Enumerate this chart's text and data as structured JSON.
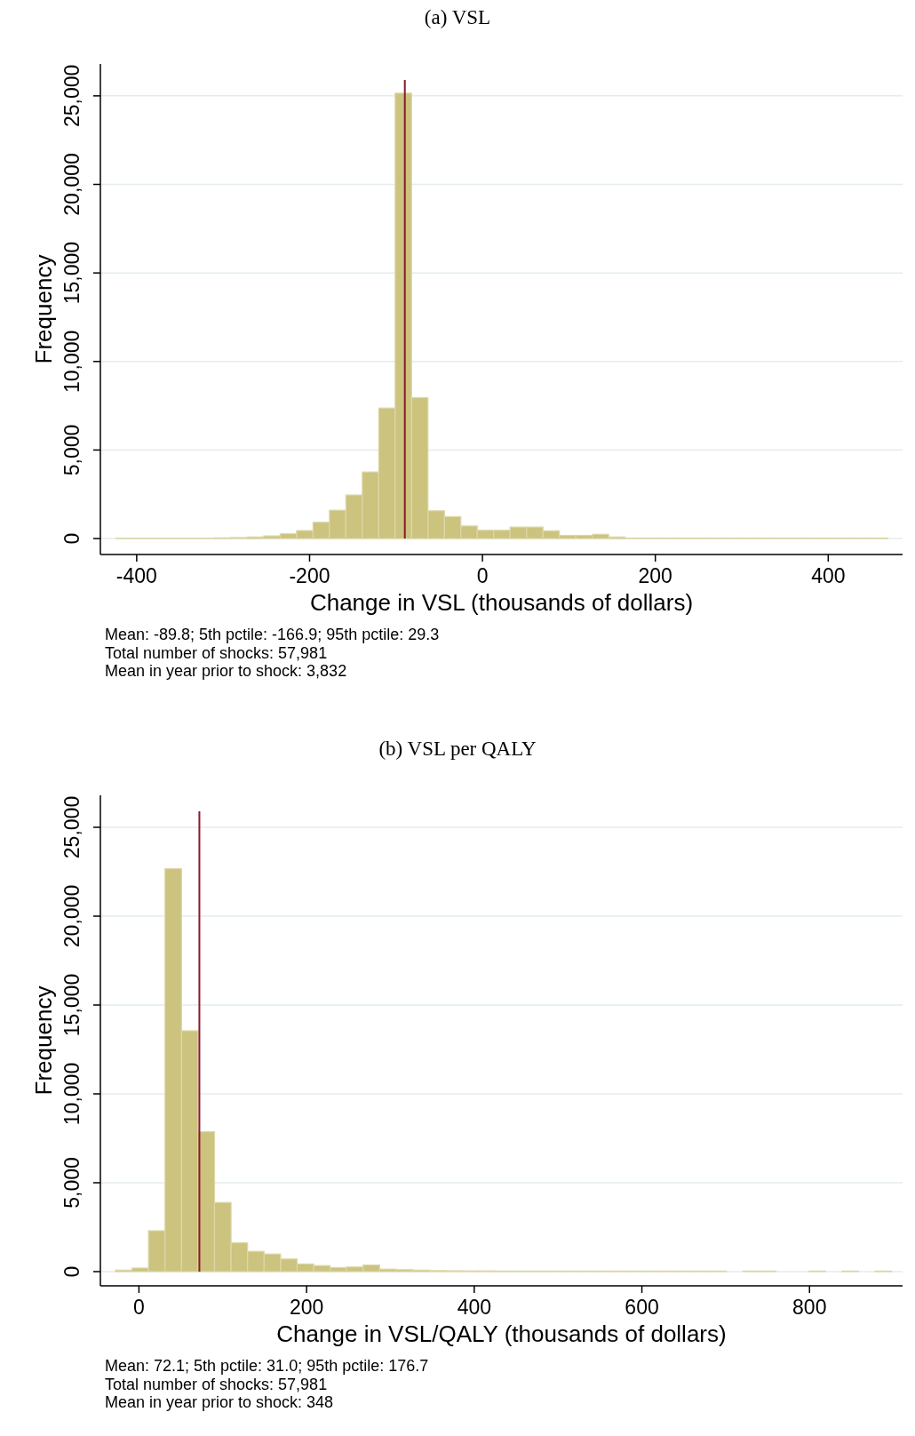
{
  "chart_data": [
    {
      "type": "histogram",
      "title": "(a) VSL",
      "xlabel": "Change in VSL (thousands of dollars)",
      "ylabel": "Frequency",
      "bins": [
        -424,
        -405,
        -386,
        -367,
        -348,
        -329,
        -310,
        -291,
        -272,
        -253,
        -234,
        -215,
        -196,
        -177,
        -158,
        -139,
        -120,
        -101,
        -82,
        -63,
        -44,
        -25,
        -6,
        13,
        32,
        51,
        70,
        89,
        108,
        127,
        146,
        165,
        184,
        203,
        222,
        241,
        260,
        279,
        298,
        317,
        336,
        355,
        374,
        393,
        412,
        431,
        450,
        469
      ],
      "values": [
        20,
        20,
        20,
        20,
        20,
        20,
        40,
        60,
        90,
        150,
        270,
        450,
        920,
        1600,
        2460,
        3760,
        7370,
        25150,
        7960,
        1570,
        1240,
        710,
        470,
        470,
        650,
        650,
        440,
        180,
        180,
        240,
        90,
        30,
        30,
        30,
        30,
        30,
        30,
        30,
        30,
        30,
        30,
        30,
        30,
        30,
        30,
        30,
        30
      ],
      "color": "#cbc37e",
      "xlim": [
        -442,
        486
      ],
      "xticks": [
        -400,
        -200,
        0,
        200,
        400
      ],
      "ylim": [
        -900,
        26800
      ],
      "yticks": [
        {
          "value": 0,
          "label": "0"
        },
        {
          "value": 5000,
          "label": "5,000"
        },
        {
          "value": 10000,
          "label": "10,000"
        },
        {
          "value": 15000,
          "label": "15,000"
        },
        {
          "value": 20000,
          "label": "20,000"
        },
        {
          "value": 25000,
          "label": "25,000"
        }
      ],
      "grid": "y",
      "ref_lines": [
        {
          "axis": "x",
          "value": -89.8,
          "color": "#8b1a2a"
        }
      ],
      "annotations": [
        "Mean: -89.8; 5th pctile: -166.9; 95th pctile: 29.3",
        "Total number of shocks:  57,981",
        "Mean in year prior to shock: 3,832"
      ]
    },
    {
      "type": "histogram",
      "title": "(b) VSL per QALY",
      "xlabel": "Change in VSL/QALY (thousands of dollars)",
      "ylabel": "Frequency",
      "bins": [
        -28,
        -8.3,
        11.4,
        31.1,
        50.8,
        70.5,
        90.2,
        109.9,
        129.6,
        149.3,
        169,
        188.7,
        208.4,
        228.1,
        247.8,
        267.5,
        287.2,
        306.9,
        326.6,
        346.3,
        366,
        385.7,
        405.4,
        425.1,
        444.8,
        464.5,
        484.2,
        503.9,
        523.6,
        543.3,
        563,
        582.7,
        602.4,
        622.1,
        641.8,
        661.5,
        681.2,
        700.9,
        720.6,
        740.3,
        760,
        779.7,
        799.4,
        819.1,
        838.8,
        858.5,
        878.2,
        897.9
      ],
      "values": [
        85,
        200,
        2300,
        22670,
        13550,
        7870,
        3890,
        1620,
        1140,
        990,
        710,
        430,
        340,
        230,
        260,
        370,
        140,
        110,
        85,
        60,
        50,
        40,
        40,
        30,
        30,
        30,
        30,
        30,
        30,
        30,
        30,
        30,
        30,
        30,
        30,
        30,
        30,
        0,
        30,
        30,
        0,
        0,
        30,
        0,
        30,
        0,
        30
      ],
      "color": "#cbc37e",
      "xlim": [
        -46,
        911
      ],
      "xticks": [
        0,
        200,
        400,
        600,
        800
      ],
      "ylim": [
        -800,
        26800
      ],
      "yticks": [
        {
          "value": 0,
          "label": "0"
        },
        {
          "value": 5000,
          "label": "5,000"
        },
        {
          "value": 10000,
          "label": "10,000"
        },
        {
          "value": 15000,
          "label": "15,000"
        },
        {
          "value": 20000,
          "label": "20,000"
        },
        {
          "value": 25000,
          "label": "25,000"
        }
      ],
      "grid": "y",
      "ref_lines": [
        {
          "axis": "x",
          "value": 72.1,
          "color": "#8b1a2a"
        }
      ],
      "annotations": [
        "Mean: 72.1; 5th pctile: 31.0; 95th pctile: 176.7",
        "Total number of shocks:  57,981",
        "Mean in year prior to shock:  348"
      ]
    }
  ]
}
